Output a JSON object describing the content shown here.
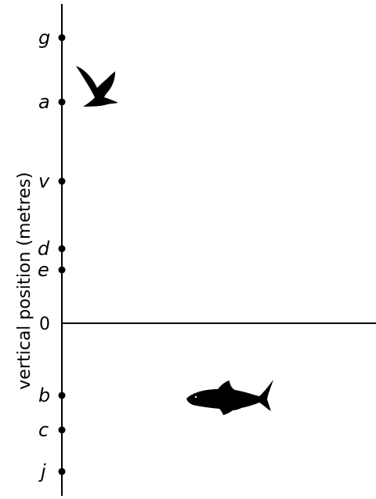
{
  "axis": {
    "title": "vertical position (metres)",
    "zero_label": "0"
  },
  "points": [
    {
      "label": "g",
      "side": "above"
    },
    {
      "label": "a",
      "side": "above"
    },
    {
      "label": "v",
      "side": "above"
    },
    {
      "label": "d",
      "side": "above"
    },
    {
      "label": "e",
      "side": "above"
    },
    {
      "label": "b",
      "side": "below"
    },
    {
      "label": "c",
      "side": "below"
    },
    {
      "label": "j",
      "side": "below"
    }
  ],
  "figures": {
    "bird": "bird-silhouette",
    "shark": "shark-silhouette"
  },
  "colors": {
    "ink": "#000000",
    "background": "#ffffff"
  }
}
